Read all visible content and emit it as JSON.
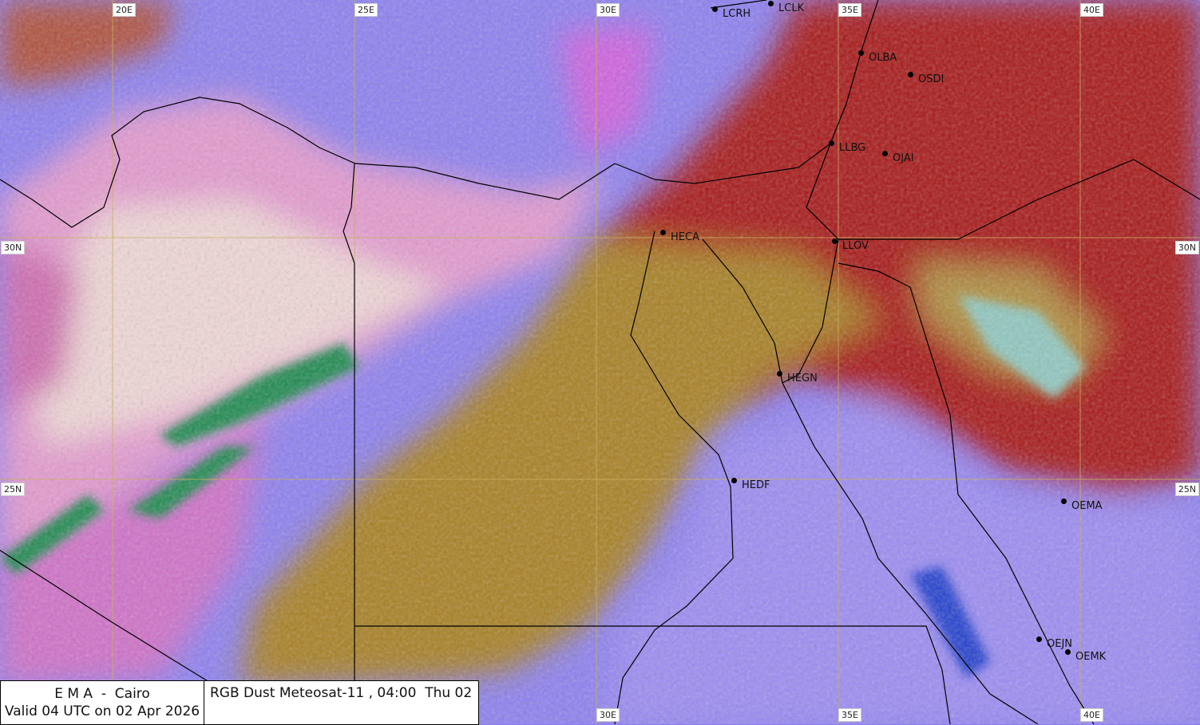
{
  "map": {
    "product": "RGB Dust Meteosat-11",
    "colors": {
      "clear_land": "#8a7cf0",
      "dust": "#e8a8d0",
      "high_cloud": "#a01010",
      "mid_cloud": "#a07a20",
      "moisture_green": "#1a8a50",
      "gridline": "#c8b060"
    },
    "longitude_labels_top": [
      "20E",
      "25E",
      "30E",
      "35E",
      "40E"
    ],
    "longitude_labels_bottom": [
      "30E",
      "35E",
      "40E"
    ],
    "latitude_labels": [
      "30N",
      "25N"
    ],
    "stations": [
      "LCRH",
      "LCLK",
      "OLBA",
      "OSDI",
      "LLBG",
      "OJAI",
      "HECA",
      "LLOV",
      "HEGN",
      "HEDF",
      "OEMA",
      "OEJN",
      "OEMK"
    ]
  },
  "caption": {
    "agency": "E M A  -  Cairo",
    "valid": "Valid 04 UTC on 02 Apr 2026",
    "title": "RGB Dust Meteosat-11 , 04:00  Thu 02"
  }
}
